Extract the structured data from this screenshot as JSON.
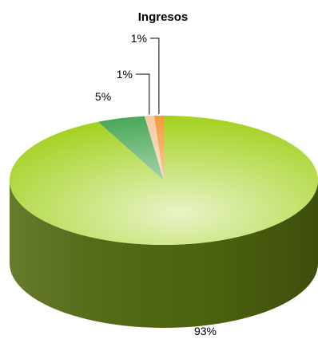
{
  "chart_data": {
    "type": "pie",
    "title": "Ingresos",
    "categories": [
      "",
      "",
      "",
      ""
    ],
    "values": [
      93,
      5,
      1,
      1
    ],
    "labels": [
      "93%",
      "5%",
      "1%",
      "1%"
    ],
    "colors": [
      "#a3d11f",
      "#4ba85a",
      "#f6c9a1",
      "#f39a3a"
    ],
    "legend": "none",
    "three_d": true
  }
}
